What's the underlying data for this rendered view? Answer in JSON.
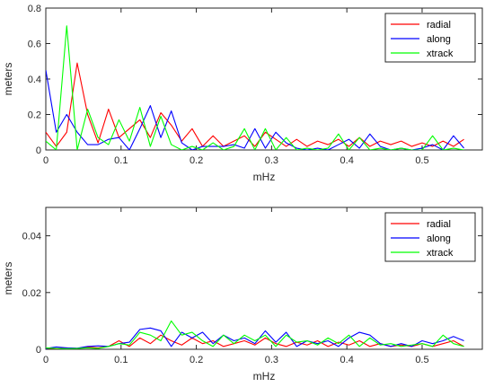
{
  "chart_data": [
    {
      "type": "line",
      "xlabel": "mHz",
      "ylabel": "meters",
      "xlim": [
        0,
        0.58
      ],
      "ylim": [
        0,
        0.8
      ],
      "xticks": [
        "0",
        "0.1",
        "0.2",
        "0.3",
        "0.4",
        "0.5"
      ],
      "yticks": [
        "0",
        "0.2",
        "0.4",
        "0.6",
        "0.8"
      ],
      "grid": false,
      "legend_position": "top-right",
      "x": [
        0,
        0.0139,
        0.0278,
        0.0417,
        0.0556,
        0.0694,
        0.0833,
        0.0972,
        0.1111,
        0.125,
        0.1389,
        0.1528,
        0.1667,
        0.1806,
        0.1944,
        0.2083,
        0.2222,
        0.2361,
        0.25,
        0.2639,
        0.2778,
        0.2917,
        0.3056,
        0.3194,
        0.3333,
        0.3472,
        0.3611,
        0.375,
        0.3889,
        0.4028,
        0.4167,
        0.4306,
        0.4444,
        0.4583,
        0.4722,
        0.4861,
        0.5,
        0.5139,
        0.5278,
        0.5417,
        0.5556
      ],
      "series": [
        {
          "name": "radial",
          "color": "#ff0000",
          "values": [
            0.1,
            0.02,
            0.1,
            0.49,
            0.2,
            0.04,
            0.23,
            0.07,
            0.12,
            0.17,
            0.07,
            0.21,
            0.14,
            0.05,
            0.12,
            0.02,
            0.08,
            0.02,
            0.05,
            0.08,
            0.02,
            0.1,
            0.06,
            0.02,
            0.06,
            0.02,
            0.05,
            0.03,
            0.06,
            0.02,
            0.07,
            0.02,
            0.05,
            0.03,
            0.05,
            0.02,
            0.04,
            0.02,
            0.05,
            0.02,
            0.06
          ]
        },
        {
          "name": "along",
          "color": "#0000ff",
          "values": [
            0.45,
            0.1,
            0.2,
            0.1,
            0.03,
            0.03,
            0.06,
            0.07,
            0.0,
            0.12,
            0.25,
            0.07,
            0.22,
            0.04,
            0.0,
            0.02,
            0.02,
            0.02,
            0.03,
            0.01,
            0.12,
            0.01,
            0.1,
            0.04,
            0.01,
            0.0,
            0.01,
            0.0,
            0.03,
            0.06,
            0.01,
            0.09,
            0.02,
            0.0,
            0.01,
            0.0,
            0.01,
            0.03,
            0.0,
            0.08,
            0.01
          ]
        },
        {
          "name": "xtrack",
          "color": "#00ff00",
          "values": [
            0.05,
            0.0,
            0.7,
            0.0,
            0.23,
            0.07,
            0.03,
            0.17,
            0.05,
            0.24,
            0.02,
            0.19,
            0.03,
            0.0,
            0.02,
            0.0,
            0.04,
            0.0,
            0.02,
            0.12,
            0.0,
            0.12,
            0.0,
            0.07,
            0.0,
            0.01,
            0.0,
            0.01,
            0.09,
            0.0,
            0.07,
            0.0,
            0.01,
            0.0,
            0.01,
            0.0,
            0.0,
            0.08,
            0.0,
            0.01,
            0.0
          ]
        }
      ]
    },
    {
      "type": "line",
      "xlabel": "mHz",
      "ylabel": "meters",
      "xlim": [
        0,
        0.58
      ],
      "ylim": [
        0,
        0.05
      ],
      "xticks": [
        "0",
        "0.1",
        "0.2",
        "0.3",
        "0.4",
        "0.5"
      ],
      "yticks": [
        "0",
        "0.02",
        "0.04"
      ],
      "grid": false,
      "legend_position": "top-right",
      "x": [
        0,
        0.0139,
        0.0278,
        0.0417,
        0.0556,
        0.0694,
        0.0833,
        0.0972,
        0.1111,
        0.125,
        0.1389,
        0.1528,
        0.1667,
        0.1806,
        0.1944,
        0.2083,
        0.2222,
        0.2361,
        0.25,
        0.2639,
        0.2778,
        0.2917,
        0.3056,
        0.3194,
        0.3333,
        0.3472,
        0.3611,
        0.375,
        0.3889,
        0.4028,
        0.4167,
        0.4306,
        0.4444,
        0.4583,
        0.4722,
        0.4861,
        0.5,
        0.5139,
        0.5278,
        0.5417,
        0.5556
      ],
      "series": [
        {
          "name": "radial",
          "color": "#ff0000",
          "values": [
            0.0004,
            0.0002,
            0.0005,
            0.0003,
            0.0008,
            0.0005,
            0.001,
            0.003,
            0.001,
            0.004,
            0.002,
            0.005,
            0.003,
            0.0015,
            0.004,
            0.002,
            0.003,
            0.001,
            0.002,
            0.003,
            0.0015,
            0.004,
            0.002,
            0.001,
            0.0025,
            0.0015,
            0.003,
            0.001,
            0.0025,
            0.0015,
            0.003,
            0.001,
            0.002,
            0.001,
            0.0015,
            0.001,
            0.002,
            0.001,
            0.002,
            0.003,
            0.001
          ]
        },
        {
          "name": "along",
          "color": "#0000ff",
          "values": [
            0.0003,
            0.0008,
            0.0005,
            0.0004,
            0.001,
            0.0012,
            0.001,
            0.002,
            0.0025,
            0.007,
            0.0075,
            0.0065,
            0.001,
            0.006,
            0.004,
            0.006,
            0.002,
            0.005,
            0.003,
            0.004,
            0.002,
            0.0065,
            0.0025,
            0.006,
            0.001,
            0.003,
            0.002,
            0.003,
            0.001,
            0.004,
            0.006,
            0.005,
            0.002,
            0.001,
            0.002,
            0.001,
            0.003,
            0.002,
            0.003,
            0.0045,
            0.003
          ]
        },
        {
          "name": "xtrack",
          "color": "#00ff00",
          "values": [
            0.0005,
            0.0003,
            0.0002,
            0.0003,
            0.0005,
            0.0003,
            0.001,
            0.002,
            0.0015,
            0.006,
            0.005,
            0.003,
            0.01,
            0.005,
            0.006,
            0.003,
            0.001,
            0.005,
            0.002,
            0.005,
            0.003,
            0.005,
            0.001,
            0.005,
            0.0025,
            0.003,
            0.0015,
            0.004,
            0.002,
            0.005,
            0.001,
            0.004,
            0.0015,
            0.002,
            0.001,
            0.0015,
            0.002,
            0.001,
            0.005,
            0.002,
            0.001
          ]
        }
      ]
    }
  ]
}
